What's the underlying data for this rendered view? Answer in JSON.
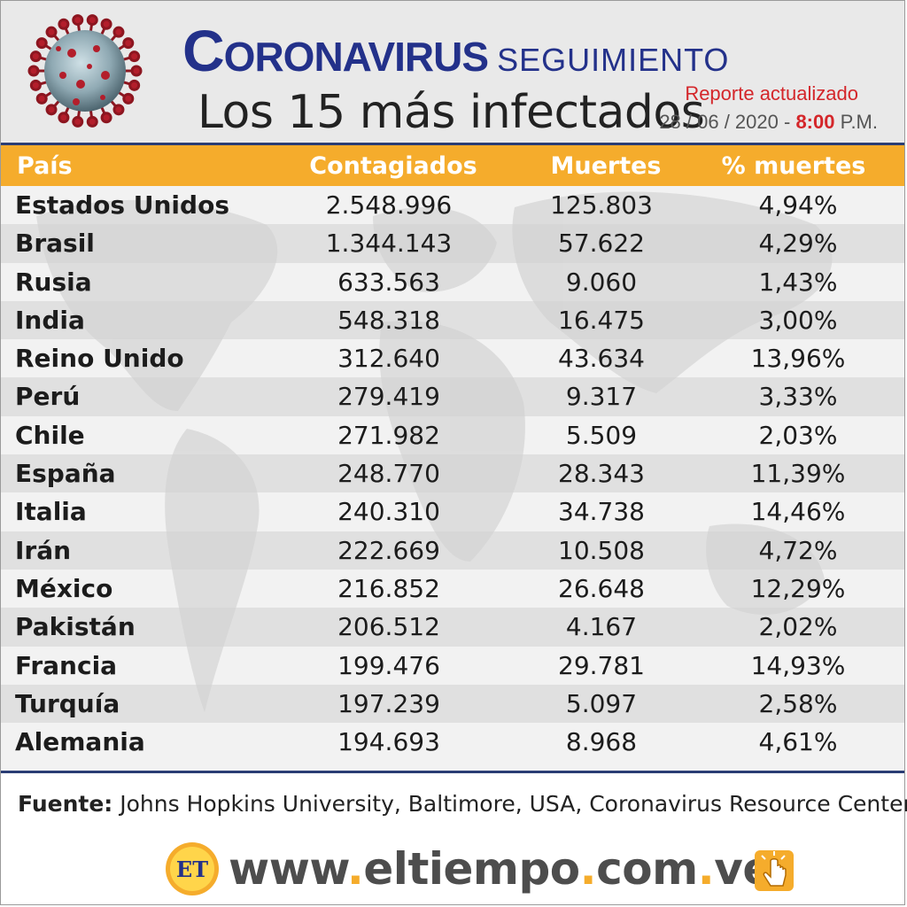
{
  "header": {
    "title_part1": "Coronavirus",
    "title_part2": "seguimiento",
    "subtitle": "Los 15 más infectados",
    "report_label": "Reporte actualizado",
    "report_date": "28 / 06 / 2020 -",
    "report_time": "8:00",
    "report_ampm": "P.M."
  },
  "table": {
    "headers": [
      "País",
      "Contagiados",
      "Muertes",
      "% muertes"
    ],
    "rows": [
      {
        "country": "Estados Unidos",
        "cases": "2.548.996",
        "deaths": "125.803",
        "pct": "4,94%"
      },
      {
        "country": "Brasil",
        "cases": "1.344.143",
        "deaths": "57.622",
        "pct": "4,29%"
      },
      {
        "country": "Rusia",
        "cases": "633.563",
        "deaths": "9.060",
        "pct": "1,43%"
      },
      {
        "country": "India",
        "cases": "548.318",
        "deaths": "16.475",
        "pct": "3,00%"
      },
      {
        "country": "Reino Unido",
        "cases": "312.640",
        "deaths": "43.634",
        "pct": "13,96%"
      },
      {
        "country": "Perú",
        "cases": "279.419",
        "deaths": "9.317",
        "pct": "3,33%"
      },
      {
        "country": "Chile",
        "cases": "271.982",
        "deaths": "5.509",
        "pct": "2,03%"
      },
      {
        "country": "España",
        "cases": "248.770",
        "deaths": "28.343",
        "pct": "11,39%"
      },
      {
        "country": "Italia",
        "cases": "240.310",
        "deaths": "34.738",
        "pct": "14,46%"
      },
      {
        "country": "Irán",
        "cases": "222.669",
        "deaths": "10.508",
        "pct": "4,72%"
      },
      {
        "country": "México",
        "cases": "216.852",
        "deaths": "26.648",
        "pct": "12,29%"
      },
      {
        "country": "Pakistán",
        "cases": "206.512",
        "deaths": "4.167",
        "pct": "2,02%"
      },
      {
        "country": "Francia",
        "cases": "199.476",
        "deaths": "29.781",
        "pct": "14,93%"
      },
      {
        "country": "Turquía",
        "cases": "197.239",
        "deaths": "5.097",
        "pct": "2,58%"
      },
      {
        "country": "Alemania",
        "cases": "194.693",
        "deaths": "8.968",
        "pct": "4,61%"
      }
    ]
  },
  "footer": {
    "source_label": "Fuente:",
    "source_text": " Johns Hopkins University, Baltimore, USA, Coronavirus Resource Center",
    "url_part1": "www",
    "url_part2": "eltiempo",
    "url_part3": "com",
    "url_part4": "ve",
    "logo_text": "ET"
  },
  "colors": {
    "accent_orange": "#f5ac2c",
    "title_blue": "#23318a",
    "rule_navy": "#2a3d74",
    "report_red": "#d4262a"
  },
  "icons": [
    "coronavirus-icon",
    "world-map-background",
    "et-logo",
    "click-hand-icon"
  ]
}
